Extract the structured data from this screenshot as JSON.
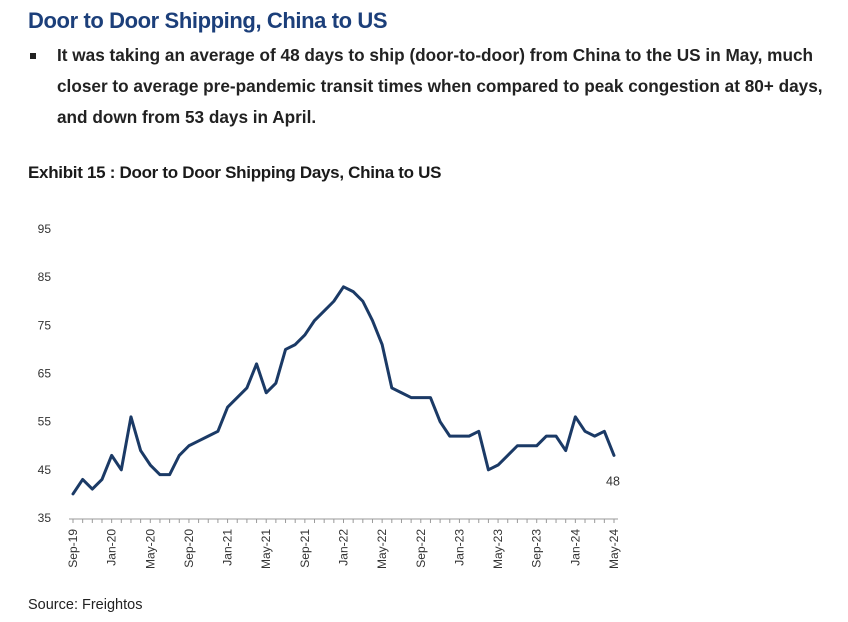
{
  "header": {
    "title": "Door to Door Shipping, China to US",
    "bullet": "It was taking an average of 48 days to ship (door-to-door) from China to the US in May, much closer to average pre-pandemic transit times when compared to peak congestion at 80+ days, and down from 53 days in April."
  },
  "exhibit_title": "Exhibit 15 : Door to Door Shipping Days, China to US",
  "source": "Source: Freightos",
  "colors": {
    "title": "#1c3f7a",
    "line": "#1b3a66"
  },
  "chart_data": {
    "type": "line",
    "title": "Exhibit 15 : Door to Door Shipping Days, China to US",
    "xlabel": "",
    "ylabel": "",
    "ylim": [
      35,
      95
    ],
    "yticks": [
      35,
      45,
      55,
      65,
      75,
      85,
      95
    ],
    "xtick_labels": [
      "Sep-19",
      "Jan-20",
      "May-20",
      "Sep-20",
      "Jan-21",
      "May-21",
      "Sep-21",
      "Jan-22",
      "May-22",
      "Sep-22",
      "Jan-23",
      "May-23",
      "Sep-23",
      "Jan-24",
      "May-24"
    ],
    "grid": false,
    "legend": "none",
    "x": [
      "Sep-19",
      "Oct-19",
      "Nov-19",
      "Dec-19",
      "Jan-20",
      "Feb-20",
      "Mar-20",
      "Apr-20",
      "May-20",
      "Jun-20",
      "Jul-20",
      "Aug-20",
      "Sep-20",
      "Oct-20",
      "Nov-20",
      "Dec-20",
      "Jan-21",
      "Feb-21",
      "Mar-21",
      "Apr-21",
      "May-21",
      "Jun-21",
      "Jul-21",
      "Aug-21",
      "Sep-21",
      "Oct-21",
      "Nov-21",
      "Dec-21",
      "Jan-22",
      "Feb-22",
      "Mar-22",
      "Apr-22",
      "May-22",
      "Jun-22",
      "Jul-22",
      "Aug-22",
      "Sep-22",
      "Oct-22",
      "Nov-22",
      "Dec-22",
      "Jan-23",
      "Feb-23",
      "Mar-23",
      "Apr-23",
      "May-23",
      "Jun-23",
      "Jul-23",
      "Aug-23",
      "Sep-23",
      "Oct-23",
      "Nov-23",
      "Dec-23",
      "Jan-24",
      "Feb-24",
      "Mar-24",
      "Apr-24",
      "May-24"
    ],
    "series": [
      {
        "values": [
          40,
          43,
          41,
          43,
          48,
          45,
          56,
          49,
          46,
          44,
          44,
          48,
          50,
          51,
          52,
          53,
          58,
          60,
          62,
          67,
          61,
          63,
          70,
          71,
          73,
          76,
          78,
          80,
          83,
          82,
          80,
          76,
          71,
          62,
          61,
          60,
          60,
          60,
          55,
          52,
          52,
          52,
          53,
          45,
          46,
          48,
          50,
          50,
          50,
          52,
          52,
          49,
          56,
          53,
          52,
          53,
          48
        ]
      }
    ],
    "annotations": [
      {
        "text": "48",
        "x": "May-24"
      }
    ]
  }
}
